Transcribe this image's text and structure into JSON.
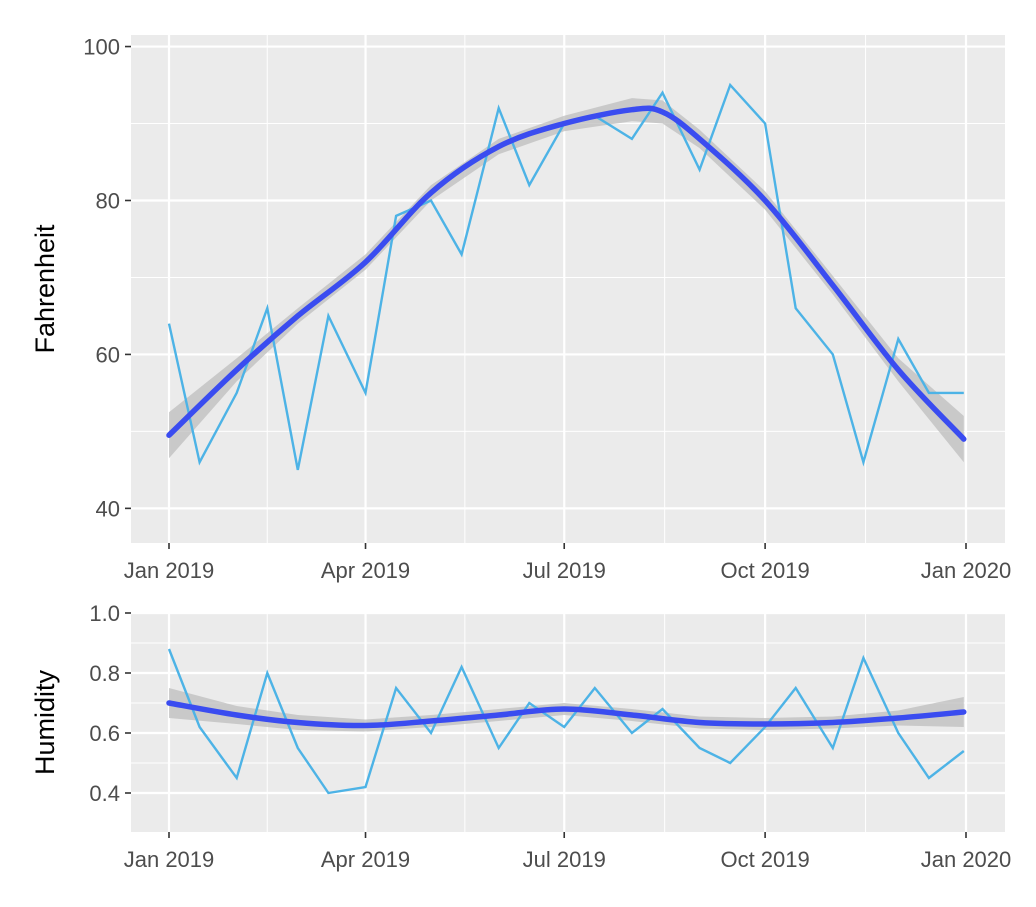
{
  "chart_data": [
    {
      "type": "line",
      "panel": "top",
      "ylabel": "Fahrenheit",
      "xlabel": "",
      "ylim": [
        35.5,
        101.5
      ],
      "yticks": [
        40,
        60,
        80,
        100
      ],
      "xticks": [
        "Jan 2019",
        "Apr 2019",
        "Jul 2019",
        "Oct 2019",
        "Jan 2020"
      ],
      "grid": true,
      "series": [
        {
          "role": "daily",
          "color": "#4db3e6",
          "x": [
            "2019-01-01",
            "2019-01-15",
            "2019-02-01",
            "2019-02-15",
            "2019-03-01",
            "2019-03-15",
            "2019-04-01",
            "2019-04-15",
            "2019-05-01",
            "2019-05-15",
            "2019-06-01",
            "2019-06-15",
            "2019-07-01",
            "2019-07-15",
            "2019-08-01",
            "2019-08-15",
            "2019-09-01",
            "2019-09-15",
            "2019-10-01",
            "2019-10-15",
            "2019-11-01",
            "2019-11-15",
            "2019-12-01",
            "2019-12-15",
            "2019-12-31"
          ],
          "values": [
            64,
            46,
            55,
            66,
            45,
            65,
            55,
            78,
            80,
            73,
            92,
            82,
            90,
            91,
            88,
            94,
            84,
            95,
            90,
            66,
            60,
            46,
            62,
            55,
            55
          ]
        },
        {
          "role": "smooth",
          "color": "#3a4cf0",
          "band_color": "#bdbdbd",
          "x": [
            "2019-01-01",
            "2019-02-01",
            "2019-03-01",
            "2019-04-01",
            "2019-05-01",
            "2019-06-01",
            "2019-07-01",
            "2019-08-01",
            "2019-08-15",
            "2019-09-01",
            "2019-10-01",
            "2019-11-01",
            "2019-12-01",
            "2019-12-31"
          ],
          "values": [
            49.5,
            58,
            65,
            72,
            81,
            87,
            90,
            91.8,
            91.5,
            88,
            80,
            69,
            58,
            49
          ],
          "lower": [
            46.5,
            56.5,
            64,
            71,
            80,
            86,
            89,
            90.3,
            90,
            86.8,
            78.8,
            67.8,
            56.5,
            46
          ],
          "upper": [
            52.5,
            59.5,
            66,
            73,
            82,
            88,
            91,
            93.3,
            93,
            89.2,
            81.2,
            70.2,
            59.5,
            52
          ]
        }
      ]
    },
    {
      "type": "line",
      "panel": "bottom",
      "ylabel": "Humidity",
      "xlabel": "",
      "ylim": [
        0.27,
        1.0
      ],
      "yticks": [
        "0.4",
        "0.6",
        "0.8",
        "1.0"
      ],
      "xticks": [
        "Jan 2019",
        "Apr 2019",
        "Jul 2019",
        "Oct 2019",
        "Jan 2020"
      ],
      "grid": true,
      "series": [
        {
          "role": "daily",
          "color": "#4db3e6",
          "x": [
            "2019-01-01",
            "2019-01-15",
            "2019-02-01",
            "2019-02-15",
            "2019-03-01",
            "2019-03-15",
            "2019-04-01",
            "2019-04-15",
            "2019-05-01",
            "2019-05-15",
            "2019-06-01",
            "2019-06-15",
            "2019-07-01",
            "2019-07-15",
            "2019-08-01",
            "2019-08-15",
            "2019-09-01",
            "2019-09-15",
            "2019-10-01",
            "2019-10-15",
            "2019-11-01",
            "2019-11-15",
            "2019-12-01",
            "2019-12-15",
            "2019-12-31"
          ],
          "values": [
            0.88,
            0.62,
            0.45,
            0.8,
            0.55,
            0.4,
            0.42,
            0.75,
            0.6,
            0.82,
            0.55,
            0.7,
            0.62,
            0.75,
            0.6,
            0.68,
            0.55,
            0.5,
            0.62,
            0.75,
            0.55,
            0.85,
            0.6,
            0.45,
            0.54
          ]
        },
        {
          "role": "smooth",
          "color": "#3a4cf0",
          "band_color": "#bdbdbd",
          "x": [
            "2019-01-01",
            "2019-02-01",
            "2019-03-01",
            "2019-04-01",
            "2019-05-01",
            "2019-06-01",
            "2019-07-01",
            "2019-08-01",
            "2019-09-01",
            "2019-10-01",
            "2019-11-01",
            "2019-12-01",
            "2019-12-31"
          ],
          "values": [
            0.7,
            0.66,
            0.635,
            0.625,
            0.64,
            0.66,
            0.68,
            0.66,
            0.635,
            0.63,
            0.635,
            0.65,
            0.67
          ],
          "lower": [
            0.65,
            0.63,
            0.61,
            0.605,
            0.62,
            0.64,
            0.66,
            0.64,
            0.615,
            0.61,
            0.615,
            0.625,
            0.62
          ],
          "upper": [
            0.75,
            0.69,
            0.66,
            0.645,
            0.66,
            0.68,
            0.7,
            0.68,
            0.655,
            0.65,
            0.655,
            0.675,
            0.72
          ]
        }
      ]
    }
  ]
}
